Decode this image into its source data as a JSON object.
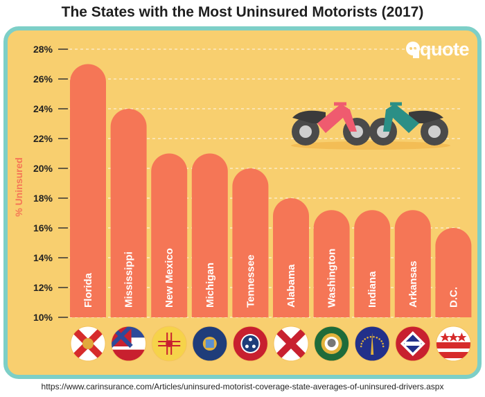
{
  "title": "The States with the Most Uninsured Motorists (2017)",
  "logo_text": "quote",
  "source": "https://www.carinsurance.com/Articles/uninsured-motorist-coverage-state-averages-of-uninsured-drivers.aspx",
  "colors": {
    "panel_bg": "#f8cf6f",
    "panel_border": "#7dcfc7",
    "bar": "#f57656",
    "axis_label": "#f57656"
  },
  "chart_data": {
    "type": "bar",
    "ylabel": "% Uninsured",
    "ylim": [
      10,
      28
    ],
    "yticks": [
      "10%",
      "12%",
      "14%",
      "16%",
      "18%",
      "20%",
      "22%",
      "24%",
      "26%",
      "28%"
    ],
    "categories": [
      "Florida",
      "Mississippi",
      "New Mexico",
      "Michigan",
      "Tennessee",
      "Alabama",
      "Washington",
      "Indiana",
      "Arkansas",
      "D.C."
    ],
    "values": [
      27,
      24,
      21,
      21,
      20,
      18,
      17.2,
      17.2,
      17.2,
      16
    ],
    "grid": true,
    "legend": "none"
  }
}
